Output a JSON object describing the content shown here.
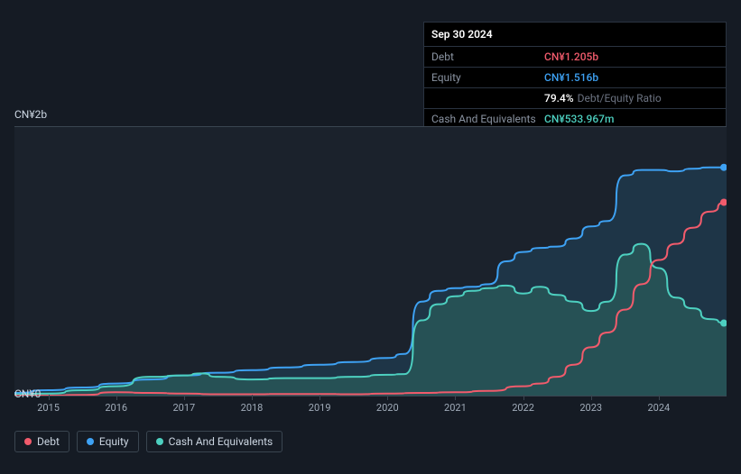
{
  "tooltip": {
    "date": "Sep 30 2024",
    "rows": [
      {
        "label": "Debt",
        "value": "CN¥1.205b",
        "color": "#f15b6c"
      },
      {
        "label": "Equity",
        "value": "CN¥1.516b",
        "color": "#3ea2f4"
      },
      {
        "label": "",
        "value": "79.4%",
        "extra": "Debt/Equity Ratio",
        "color": "#ffffff"
      },
      {
        "label": "Cash And Equivalents",
        "value": "CN¥533.967m",
        "color": "#4dd0c0"
      }
    ]
  },
  "chart": {
    "type": "area-line",
    "background_color": "#1b222c",
    "page_background": "#151b24",
    "grid_border": "#3a4550",
    "y": {
      "min": 0,
      "max": 2000,
      "ticks": [
        {
          "v": 0,
          "label": "CN¥0"
        },
        {
          "v": 2000,
          "label": "CN¥2b"
        }
      ],
      "label_fontsize": 12,
      "label_color": "#cbd5e1"
    },
    "x": {
      "min": 2014.5,
      "max": 2025.0,
      "ticks": [
        2015,
        2016,
        2017,
        2018,
        2019,
        2020,
        2021,
        2022,
        2023,
        2024
      ],
      "label_fontsize": 11,
      "label_color": "#a0abb8"
    },
    "series": [
      {
        "name": "Equity",
        "color": "#3ea2f4",
        "fill": "#21455e",
        "fill_opacity": 0.55,
        "line_width": 2,
        "area": true,
        "points": [
          [
            2014.5,
            20
          ],
          [
            2015,
            40
          ],
          [
            2015.5,
            60
          ],
          [
            2016,
            90
          ],
          [
            2016.5,
            120
          ],
          [
            2017,
            150
          ],
          [
            2017.5,
            170
          ],
          [
            2018,
            190
          ],
          [
            2018.5,
            210
          ],
          [
            2019,
            230
          ],
          [
            2019.5,
            250
          ],
          [
            2020,
            280
          ],
          [
            2020.25,
            310
          ],
          [
            2020.5,
            700
          ],
          [
            2020.75,
            780
          ],
          [
            2021,
            800
          ],
          [
            2021.25,
            810
          ],
          [
            2021.5,
            830
          ],
          [
            2021.75,
            1000
          ],
          [
            2022,
            1070
          ],
          [
            2022.25,
            1100
          ],
          [
            2022.5,
            1110
          ],
          [
            2022.75,
            1170
          ],
          [
            2023,
            1260
          ],
          [
            2023.25,
            1300
          ],
          [
            2023.5,
            1640
          ],
          [
            2023.75,
            1680
          ],
          [
            2024,
            1680
          ],
          [
            2024.25,
            1670
          ],
          [
            2024.5,
            1690
          ],
          [
            2024.75,
            1700
          ],
          [
            2025,
            1700
          ]
        ]
      },
      {
        "name": "Cash And Equivalents",
        "color": "#4dd0c0",
        "fill": "#2e6861",
        "fill_opacity": 0.55,
        "line_width": 2,
        "area": true,
        "points": [
          [
            2014.5,
            10
          ],
          [
            2015,
            15
          ],
          [
            2015.5,
            40
          ],
          [
            2016,
            70
          ],
          [
            2016.5,
            140
          ],
          [
            2017,
            150
          ],
          [
            2017.25,
            165
          ],
          [
            2017.5,
            140
          ],
          [
            2018,
            120
          ],
          [
            2018.5,
            130
          ],
          [
            2019,
            130
          ],
          [
            2019.5,
            140
          ],
          [
            2020,
            155
          ],
          [
            2020.25,
            160
          ],
          [
            2020.5,
            560
          ],
          [
            2020.75,
            680
          ],
          [
            2021,
            740
          ],
          [
            2021.25,
            780
          ],
          [
            2021.5,
            800
          ],
          [
            2021.75,
            820
          ],
          [
            2022,
            760
          ],
          [
            2022.25,
            810
          ],
          [
            2022.5,
            750
          ],
          [
            2022.75,
            700
          ],
          [
            2023,
            630
          ],
          [
            2023.25,
            700
          ],
          [
            2023.5,
            1050
          ],
          [
            2023.75,
            1130
          ],
          [
            2024,
            950
          ],
          [
            2024.25,
            730
          ],
          [
            2024.5,
            650
          ],
          [
            2024.75,
            570
          ],
          [
            2025,
            540
          ]
        ]
      },
      {
        "name": "Debt",
        "color": "#f15b6c",
        "fill": "none",
        "line_width": 2,
        "area": false,
        "points": [
          [
            2014.5,
            0
          ],
          [
            2015,
            0
          ],
          [
            2015.5,
            5
          ],
          [
            2016,
            25
          ],
          [
            2016.5,
            20
          ],
          [
            2017,
            15
          ],
          [
            2017.5,
            10
          ],
          [
            2018,
            10
          ],
          [
            2018.5,
            12
          ],
          [
            2019,
            12
          ],
          [
            2019.5,
            10
          ],
          [
            2020,
            15
          ],
          [
            2020.5,
            20
          ],
          [
            2021,
            25
          ],
          [
            2021.5,
            35
          ],
          [
            2022,
            70
          ],
          [
            2022.25,
            90
          ],
          [
            2022.5,
            140
          ],
          [
            2022.75,
            230
          ],
          [
            2023,
            360
          ],
          [
            2023.25,
            470
          ],
          [
            2023.5,
            640
          ],
          [
            2023.75,
            830
          ],
          [
            2024,
            1010
          ],
          [
            2024.25,
            1130
          ],
          [
            2024.5,
            1250
          ],
          [
            2024.75,
            1370
          ],
          [
            2025,
            1440
          ]
        ]
      }
    ],
    "end_markers": [
      {
        "series": "Equity",
        "color": "#3ea2f4",
        "y": 1700
      },
      {
        "series": "Debt",
        "color": "#f15b6c",
        "y": 1440
      },
      {
        "series": "Cash And Equivalents",
        "color": "#4dd0c0",
        "y": 540
      }
    ]
  },
  "legend": {
    "items": [
      {
        "label": "Debt",
        "color": "#f15b6c"
      },
      {
        "label": "Equity",
        "color": "#3ea2f4"
      },
      {
        "label": "Cash And Equivalents",
        "color": "#4dd0c0"
      }
    ],
    "border_color": "#3a4550",
    "text_color": "#cbd5e1",
    "fontsize": 12
  }
}
